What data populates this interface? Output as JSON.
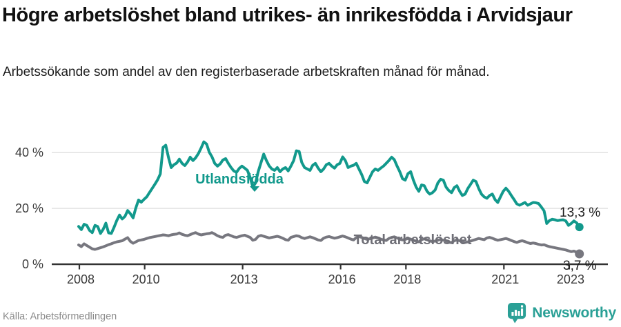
{
  "header": {
    "title": "Högre arbetslöshet bland utrikes- än inrikesfödda i Arvidsjaur",
    "subtitle": "Arbetssökande som andel av den registerbaserade arbetskraften månad för månad."
  },
  "footer": {
    "source": "Källa: Arbetsförmedlingen",
    "brand": "Newsworthy"
  },
  "colors": {
    "accent_teal": "#12998c",
    "line_gray": "#77777f",
    "axis": "#333333",
    "gridline": "#dadada",
    "brand_teal": "#2aa096"
  },
  "chart_data": {
    "type": "line",
    "title": "Högre arbetslöshet bland utrikes- än inrikesfödda i Arvidsjaur",
    "subtitle": "Arbetssökande som andel av den registerbaserade arbetskraften månad för månad.",
    "x_unit": "month",
    "x_range": [
      "2008-01",
      "2023-05"
    ],
    "ylim": [
      0,
      46
    ],
    "grid": "horizontal",
    "y_ticks": [
      {
        "value": 0,
        "label": "0 %"
      },
      {
        "value": 20,
        "label": "20 %"
      },
      {
        "value": 40,
        "label": "40 %"
      }
    ],
    "x_ticks": [
      {
        "year": 2008,
        "label": "2008"
      },
      {
        "year": 2010,
        "label": "2010"
      },
      {
        "year": 2013,
        "label": "2013"
      },
      {
        "year": 2016,
        "label": "2016"
      },
      {
        "year": 2018,
        "label": "2018"
      },
      {
        "year": 2021,
        "label": "2021"
      },
      {
        "year": 2023,
        "label": "2023"
      }
    ],
    "series": [
      {
        "name": "Utlandsfödda",
        "color": "#12998c",
        "end_value": 13.3,
        "end_label": "13,3 %",
        "dot_radius": 6,
        "values": [
          13.5,
          12.4,
          14.3,
          13.9,
          12.1,
          11.3,
          13.9,
          13.5,
          11.0,
          12.5,
          14.7,
          11.2,
          11.0,
          13.2,
          15.6,
          17.6,
          16.2,
          17.1,
          19.2,
          18.1,
          16.6,
          20.1,
          23.0,
          22.2,
          23.2,
          24.1,
          25.6,
          27.1,
          28.6,
          30.2,
          32.3,
          41.8,
          42.6,
          38.2,
          34.6,
          35.6,
          36.2,
          37.6,
          36.1,
          35.3,
          36.6,
          38.3,
          37.1,
          38.1,
          39.6,
          41.6,
          43.8,
          43.0,
          40.1,
          38.4,
          36.1,
          35.1,
          35.9,
          37.3,
          37.8,
          36.1,
          34.6,
          33.4,
          32.9,
          34.3,
          35.1,
          34.4,
          33.6,
          31.1,
          27.6,
          29.1,
          33.2,
          36.4,
          39.4,
          37.1,
          35.2,
          34.1,
          33.6,
          34.6,
          33.1,
          34.1,
          34.6,
          33.4,
          35.1,
          37.1,
          40.6,
          40.4,
          36.4,
          34.6,
          34.1,
          33.6,
          35.4,
          36.1,
          34.4,
          33.1,
          34.1,
          35.6,
          36.1,
          35.1,
          34.4,
          35.6,
          36.1,
          38.4,
          37.1,
          34.6,
          35.1,
          35.4,
          36.1,
          34.1,
          32.1,
          29.6,
          29.1,
          31.1,
          33.1,
          34.1,
          33.6,
          34.4,
          35.1,
          36.1,
          37.1,
          38.3,
          37.4,
          35.1,
          33.1,
          30.6,
          30.1,
          32.4,
          33.1,
          30.1,
          27.6,
          26.1,
          28.4,
          28.1,
          26.1,
          25.1,
          25.6,
          26.6,
          29.1,
          30.4,
          30.1,
          27.6,
          26.4,
          25.6,
          27.4,
          28.1,
          26.1,
          24.6,
          25.1,
          27.1,
          28.6,
          30.1,
          29.6,
          27.1,
          25.1,
          24.1,
          23.6,
          24.6,
          25.1,
          23.1,
          22.1,
          24.1,
          26.1,
          27.2,
          26.1,
          24.6,
          23.1,
          21.6,
          21.1,
          21.6,
          22.1,
          21.1,
          21.6,
          22.1,
          22.0,
          21.7,
          20.5,
          19.1,
          14.6,
          15.6,
          16.1,
          15.9,
          15.6,
          15.8,
          15.9,
          15.5,
          13.9,
          14.6,
          15.5,
          14.8,
          13.3
        ]
      },
      {
        "name": "Total arbetslöshet",
        "color": "#77777f",
        "end_value": 3.7,
        "end_label": "3,7 %",
        "dot_radius": 6.5,
        "values": [
          6.9,
          6.3,
          7.3,
          6.7,
          6.1,
          5.5,
          5.3,
          5.6,
          5.9,
          6.2,
          6.6,
          7.0,
          7.3,
          7.7,
          8.0,
          8.2,
          8.4,
          9.0,
          9.5,
          8.2,
          7.5,
          8.0,
          8.5,
          8.7,
          8.9,
          9.2,
          9.5,
          9.7,
          9.9,
          10.1,
          10.3,
          10.5,
          10.4,
          10.2,
          10.5,
          10.7,
          10.8,
          11.2,
          10.7,
          10.4,
          10.2,
          10.6,
          11.0,
          11.3,
          10.8,
          10.5,
          10.7,
          10.9,
          11.0,
          11.3,
          10.8,
          10.2,
          9.8,
          9.6,
          10.4,
          10.6,
          10.2,
          9.8,
          9.6,
          9.9,
          10.2,
          10.4,
          10.0,
          9.6,
          8.6,
          8.9,
          10.0,
          10.3,
          10.0,
          9.7,
          9.4,
          9.6,
          9.8,
          10.0,
          9.7,
          9.3,
          8.8,
          8.6,
          9.6,
          9.9,
          10.2,
          10.0,
          9.5,
          9.2,
          9.5,
          9.8,
          9.5,
          9.1,
          8.7,
          8.5,
          9.3,
          9.7,
          9.9,
          9.6,
          9.3,
          9.5,
          9.8,
          10.1,
          9.8,
          9.4,
          9.0,
          8.7,
          9.5,
          9.9,
          9.6,
          9.2,
          8.9,
          9.1,
          9.4,
          9.7,
          9.4,
          9.0,
          8.7,
          8.5,
          9.2,
          9.6,
          9.8,
          9.4,
          9.0,
          8.7,
          8.9,
          9.2,
          9.0,
          8.6,
          8.2,
          8.0,
          8.8,
          9.1,
          8.8,
          8.4,
          8.1,
          8.3,
          8.6,
          8.9,
          8.6,
          8.2,
          7.9,
          7.7,
          8.4,
          8.7,
          8.4,
          8.0,
          7.8,
          8.0,
          8.3,
          8.6,
          8.9,
          9.2,
          9.0,
          8.8,
          9.4,
          9.6,
          9.3,
          8.9,
          8.6,
          8.8,
          9.0,
          9.2,
          8.9,
          8.5,
          8.1,
          7.8,
          8.2,
          8.4,
          8.1,
          7.7,
          7.4,
          7.6,
          7.4,
          7.1,
          6.9,
          7.0,
          6.6,
          6.3,
          6.1,
          5.9,
          5.7,
          5.5,
          5.3,
          5.1,
          4.8,
          4.5,
          4.7,
          4.3,
          3.7
        ]
      }
    ]
  }
}
